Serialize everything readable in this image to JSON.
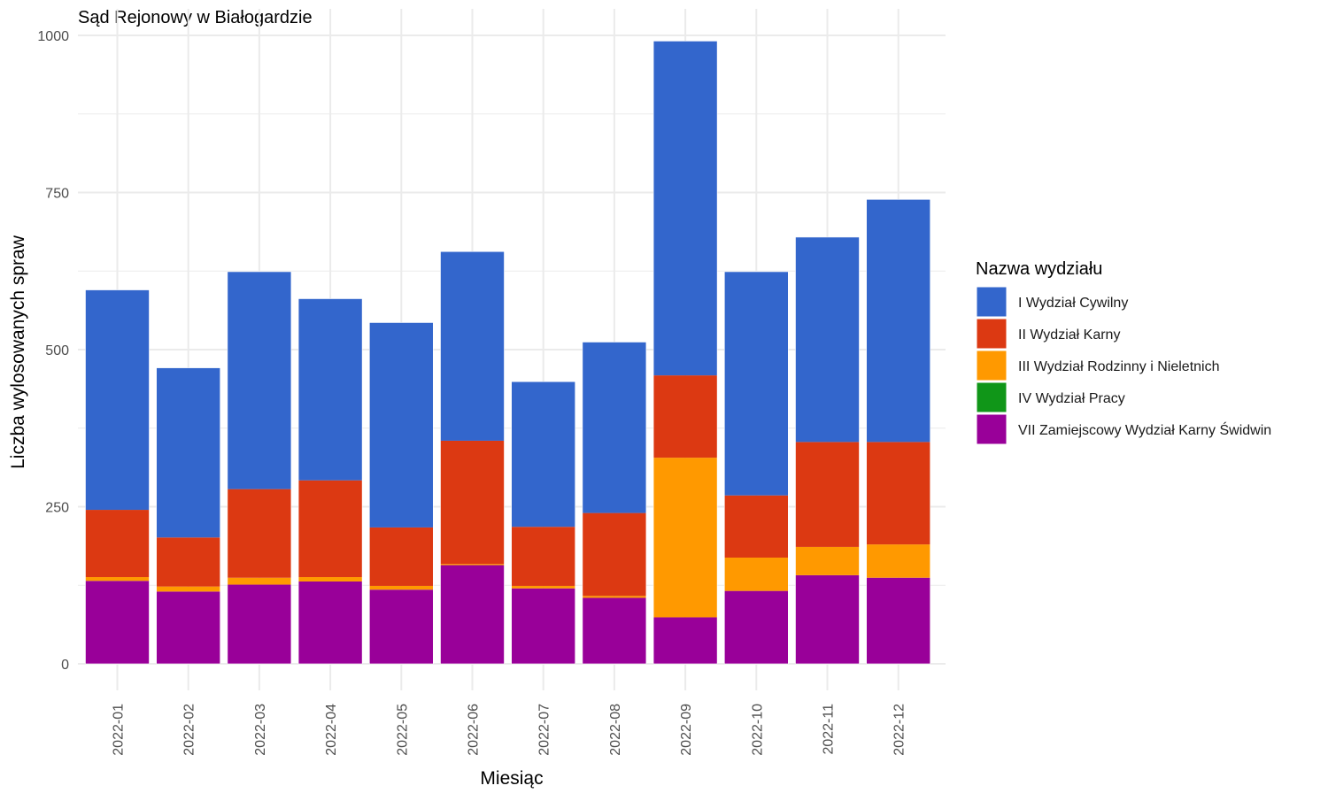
{
  "chart_data": {
    "type": "bar",
    "stacked": true,
    "title": "Sąd Rejonowy w Białogardzie",
    "xlabel": "Miesiąc",
    "ylabel": "Liczba wylosowanych spraw",
    "ylim": [
      0,
      1000
    ],
    "yticks": [
      "0",
      "250",
      "500",
      "750",
      "1000"
    ],
    "grid": true,
    "legend_title": "Nazwa wydziału",
    "legend_position": "right",
    "categories": [
      "2022-01",
      "2022-02",
      "2022-03",
      "2022-04",
      "2022-05",
      "2022-06",
      "2022-07",
      "2022-08",
      "2022-09",
      "2022-10",
      "2022-11",
      "2022-12"
    ],
    "series": [
      {
        "name": "VII Zamiejscowy Wydział Karny Świdwin",
        "color": "#990099",
        "values": [
          132,
          115,
          126,
          131,
          118,
          157,
          120,
          105,
          74,
          116,
          141,
          137
        ]
      },
      {
        "name": "IV Wydział Pracy",
        "color": "#109618",
        "values": [
          0,
          0,
          0,
          0,
          0,
          0,
          0,
          0,
          0,
          0,
          0,
          0
        ]
      },
      {
        "name": "III Wydział Rodzinny i Nieletnich",
        "color": "#FF9900",
        "values": [
          6,
          8,
          11,
          7,
          6,
          2,
          4,
          3,
          254,
          53,
          45,
          53
        ]
      },
      {
        "name": "II Wydział Karny",
        "color": "#DC3912",
        "values": [
          107,
          78,
          141,
          154,
          93,
          196,
          94,
          132,
          131,
          99,
          167,
          163
        ]
      },
      {
        "name": "I Wydział Cywilny",
        "color": "#3366CC",
        "values": [
          350,
          270,
          346,
          289,
          326,
          301,
          231,
          272,
          532,
          356,
          326,
          386
        ]
      }
    ],
    "legend_order": [
      "I Wydział Cywilny",
      "II Wydział Karny",
      "III Wydział Rodzinny i Nieletnich",
      "IV Wydział Pracy",
      "VII Zamiejscowy Wydział Karny Świdwin"
    ]
  }
}
